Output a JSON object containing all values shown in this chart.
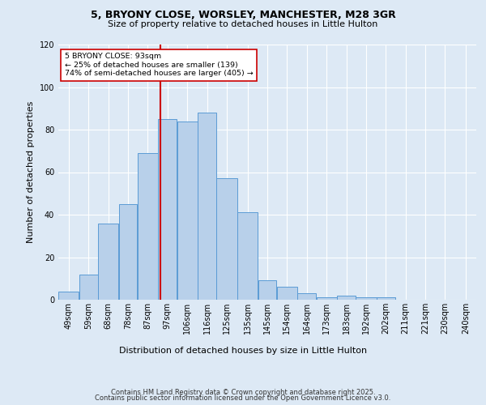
{
  "title1": "5, BRYONY CLOSE, WORSLEY, MANCHESTER, M28 3GR",
  "title2": "Size of property relative to detached houses in Little Hulton",
  "xlabel": "Distribution of detached houses by size in Little Hulton",
  "ylabel": "Number of detached properties",
  "bin_labels": [
    "49sqm",
    "59sqm",
    "68sqm",
    "78sqm",
    "87sqm",
    "97sqm",
    "106sqm",
    "116sqm",
    "125sqm",
    "135sqm",
    "145sqm",
    "154sqm",
    "164sqm",
    "173sqm",
    "183sqm",
    "192sqm",
    "202sqm",
    "211sqm",
    "221sqm",
    "230sqm",
    "240sqm"
  ],
  "hist_values": [
    4,
    12,
    36,
    45,
    69,
    85,
    84,
    88,
    57,
    41,
    9,
    6,
    3,
    1,
    2,
    1,
    1,
    0,
    0,
    0,
    0
  ],
  "bin_edges_sqm": [
    44,
    54,
    63,
    73,
    82,
    92,
    101,
    111,
    120,
    130,
    140,
    149,
    159,
    168,
    178,
    187,
    197,
    206,
    216,
    225,
    235,
    245
  ],
  "bar_color": "#b8d0ea",
  "bar_edge_color": "#5b9bd5",
  "vline_x_idx": 4.5,
  "vline_color": "#cc0000",
  "annotation_text": "5 BRYONY CLOSE: 93sqm\n← 25% of detached houses are smaller (139)\n74% of semi-detached houses are larger (405) →",
  "annotation_box_color": "white",
  "annotation_box_edge": "#cc0000",
  "ylim": [
    0,
    120
  ],
  "yticks": [
    0,
    20,
    40,
    60,
    80,
    100,
    120
  ],
  "footer1": "Contains HM Land Registry data © Crown copyright and database right 2025.",
  "footer2": "Contains public sector information licensed under the Open Government Licence v3.0.",
  "bg_color": "#dde9f5",
  "plot_bg_color": "#dde9f5",
  "grid_color": "white",
  "title1_fontsize": 9,
  "title2_fontsize": 8,
  "ylabel_fontsize": 8,
  "xlabel_fontsize": 8,
  "tick_fontsize": 7,
  "footer_fontsize": 6
}
